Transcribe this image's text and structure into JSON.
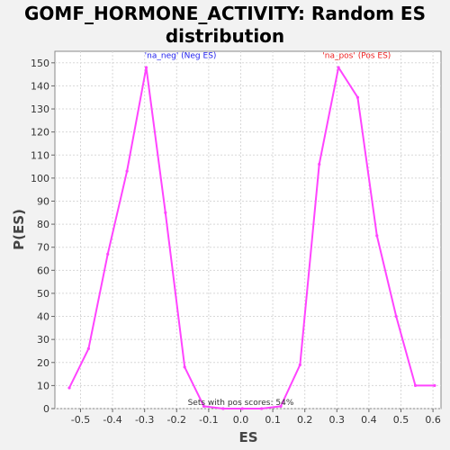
{
  "chart_data": {
    "type": "line",
    "title_line1": "GOMF_HORMONE_ACTIVITY: Random ES",
    "title_line2": "distribution",
    "xlabel": "ES",
    "ylabel": "P(ES)",
    "xlim": [
      -0.58,
      0.625
    ],
    "ylim": [
      0,
      155
    ],
    "x_ticks": [
      "-0.5",
      "-0.4",
      "-0.3",
      "-0.2",
      "-0.1",
      "0.0",
      "0.1",
      "0.2",
      "0.3",
      "0.4",
      "0.5",
      "0.6"
    ],
    "x_tick_values": [
      -0.5,
      -0.4,
      -0.3,
      -0.2,
      -0.1,
      0.0,
      0.1,
      0.2,
      0.3,
      0.4,
      0.5,
      0.6
    ],
    "y_ticks": [
      0,
      10,
      20,
      30,
      40,
      50,
      60,
      70,
      80,
      90,
      100,
      110,
      120,
      130,
      140,
      150
    ],
    "grid": true,
    "line_color": "#ff44ff",
    "series": [
      {
        "x": [
          -0.535,
          -0.475,
          -0.415,
          -0.355,
          -0.295,
          -0.235,
          -0.175,
          -0.115,
          -0.055,
          0.005,
          0.065,
          0.125,
          0.185,
          0.245,
          0.305,
          0.365,
          0.425,
          0.485,
          0.545,
          0.605
        ],
        "y": [
          9,
          26,
          67,
          103,
          148,
          85,
          18,
          1,
          0,
          0,
          0,
          1,
          19,
          106,
          148,
          135,
          75,
          40,
          10,
          10
        ]
      }
    ],
    "annotations": {
      "neg": {
        "text": "'na_neg' (Neg ES)",
        "x": -0.3,
        "y": 152,
        "color": "#2222ee"
      },
      "pos": {
        "text": "'na_pos' (Pos ES)",
        "x": 0.255,
        "y": 152,
        "color": "#ee2222"
      },
      "footnote": {
        "text": "Sets with pos scores: 54%",
        "x": 0.0,
        "y": 1.5
      }
    }
  }
}
